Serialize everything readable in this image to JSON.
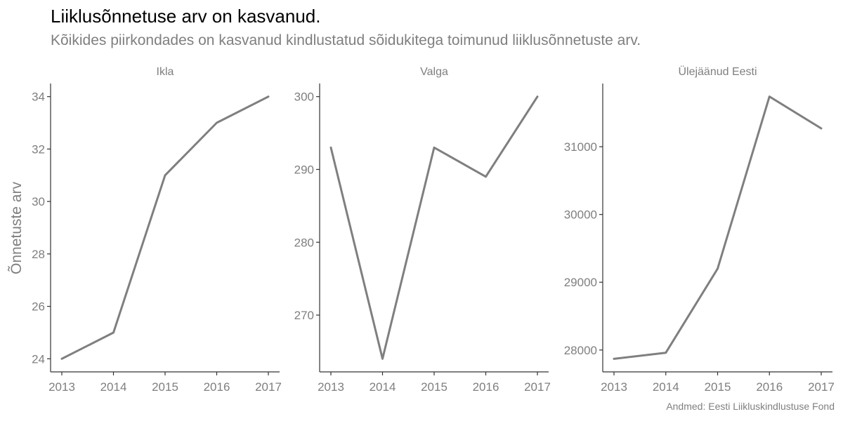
{
  "title": "Liiklusõnnetuse arv on kasvanud.",
  "subtitle": "Kõikides piirkondades on kasvanud kindlustatud sõidukitega toimunud liiklusõnnetuste arv.",
  "caption": "Andmed: Eesti Liikluskindlustuse Fond",
  "colors": {
    "line": "#7f7f7f",
    "axis": "#333333",
    "text": "#7f7f7f"
  },
  "chart_data": {
    "type": "line",
    "ylabel": "Õnnetuste arv",
    "xlabel": "",
    "grid": false,
    "x": [
      2013,
      2014,
      2015,
      2016,
      2017
    ],
    "facets": [
      {
        "label": "Ikla",
        "values": [
          24,
          25,
          31,
          33,
          34
        ],
        "ylim": [
          23.5,
          34.5
        ],
        "yticks": [
          24,
          26,
          28,
          30,
          32,
          34
        ]
      },
      {
        "label": "Valga",
        "values": [
          293,
          264,
          293,
          289,
          300
        ],
        "ylim": [
          262.2,
          301.8
        ],
        "yticks": [
          270,
          280,
          290,
          300
        ]
      },
      {
        "label": "Ülejäänud Eesti",
        "values": [
          27870,
          27960,
          29200,
          31740,
          31270
        ],
        "ylim": [
          27677,
          31933
        ],
        "yticks": [
          28000,
          29000,
          30000,
          31000
        ]
      }
    ]
  }
}
